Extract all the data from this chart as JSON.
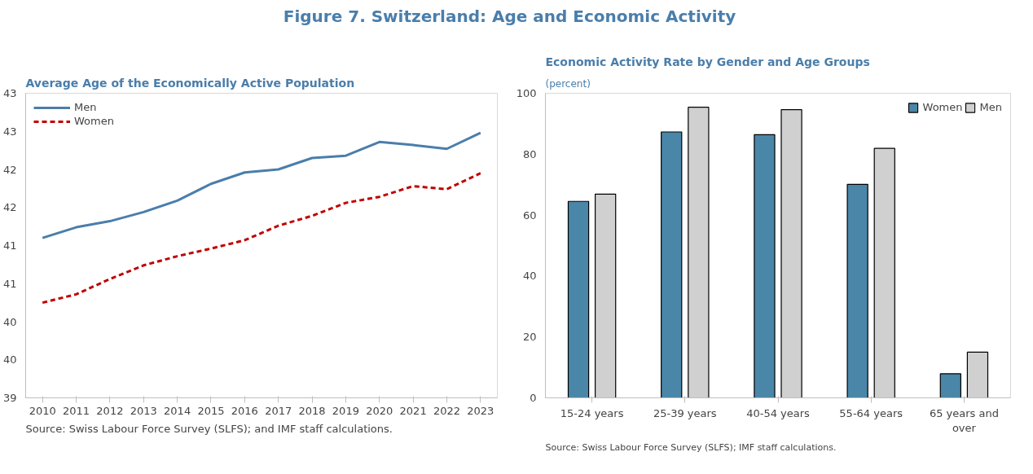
{
  "chart_data": [
    {
      "type": "other",
      "title": "Figure 7. Switzerland: Age and Economic Activity"
    },
    {
      "type": "line",
      "title": "Average Age of the Economically Active Population",
      "categories": [
        "2010",
        "2011",
        "2012",
        "2013",
        "2014",
        "2015",
        "2016",
        "2017",
        "2018",
        "2019",
        "2020",
        "2021",
        "2022",
        "2023"
      ],
      "series": [
        {
          "name": "Men",
          "color": "#4a7eab",
          "line_style": "solid",
          "values": [
            41.1,
            41.24,
            41.32,
            41.44,
            41.59,
            41.81,
            41.96,
            42.0,
            42.15,
            42.18,
            42.36,
            42.32,
            42.27,
            42.48
          ]
        },
        {
          "name": "Women",
          "color": "#c00000",
          "line_style": "dashed",
          "values": [
            40.25,
            40.36,
            40.56,
            40.74,
            40.86,
            40.96,
            41.07,
            41.26,
            41.39,
            41.56,
            41.64,
            41.78,
            41.74,
            41.95
          ]
        }
      ],
      "ylim": [
        39,
        43
      ],
      "yticks": [
        39,
        {
          "value": 39.5,
          "label": "40"
        },
        40,
        {
          "value": 40.5,
          "label": "41"
        },
        41,
        {
          "value": 41.5,
          "label": "42"
        },
        42,
        {
          "value": 42.5,
          "label": "43"
        },
        43
      ],
      "grid": false,
      "legend": "top left",
      "annotations": [
        "Source: Swiss Labour Force Survey (SLFS); and IMF staff calculations."
      ]
    },
    {
      "type": "bar",
      "title": "Economic Activity Rate by Gender and Age Groups",
      "subtitle": "(percent)",
      "categories": [
        "15-24 years",
        "25-39 years",
        "40-54 years",
        "55-64 years",
        "65 years and over"
      ],
      "series": [
        {
          "name": "Women",
          "color": "#4a86a8",
          "values": [
            64.5,
            87.3,
            86.4,
            70.1,
            7.9
          ]
        },
        {
          "name": "Men",
          "color": "#d0d0d0",
          "values": [
            66.9,
            95.4,
            94.6,
            81.9,
            15.0
          ]
        }
      ],
      "ylim": [
        0,
        100
      ],
      "yticks": [
        0,
        20,
        40,
        60,
        80,
        100
      ],
      "grid": false,
      "legend": "top right",
      "annotations": [
        "Source: Swiss Labour Force Survey (SLFS); IMF staff calculations."
      ]
    }
  ]
}
